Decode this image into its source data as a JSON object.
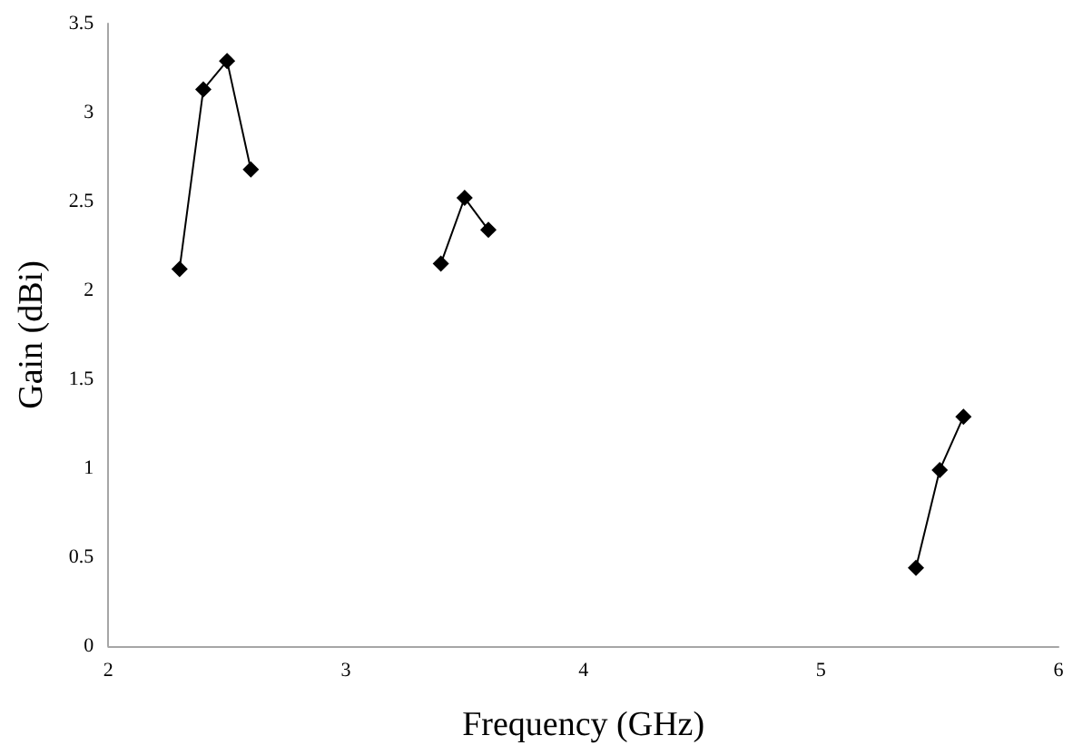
{
  "chart_data": {
    "type": "line",
    "xlabel": "Frequency (GHz)",
    "ylabel": "Gain (dBi)",
    "series": [
      {
        "color": "#000000",
        "x": [
          2.3,
          2.4,
          2.5,
          2.6
        ],
        "values": [
          2.12,
          3.13,
          3.29,
          2.68
        ]
      },
      {
        "color": "#000000",
        "x": [
          3.4,
          3.5,
          3.6
        ],
        "values": [
          2.15,
          2.52,
          2.34
        ]
      },
      {
        "color": "#000000",
        "x": [
          5.4,
          5.5,
          5.6
        ],
        "values": [
          0.44,
          0.99,
          1.29
        ]
      }
    ],
    "xlim": [
      2,
      6
    ],
    "xticks": [
      2,
      3,
      4,
      5,
      6
    ],
    "ylim": [
      0,
      3.5
    ],
    "yticks": [
      0,
      0.5,
      1,
      1.5,
      2,
      2.5,
      3,
      3.5
    ],
    "marker": "diamond",
    "line_style": "solid"
  }
}
